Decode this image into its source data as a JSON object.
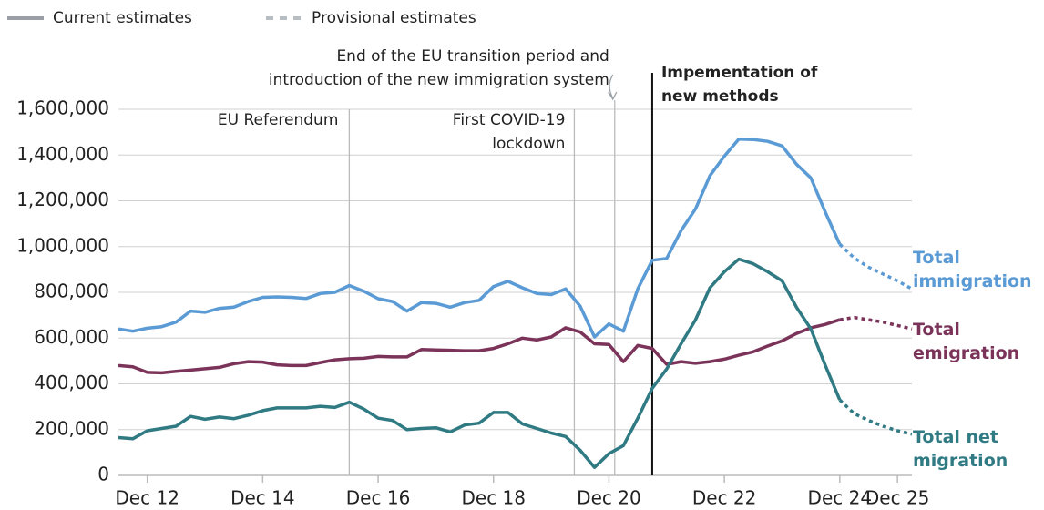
{
  "chart_data": {
    "type": "line",
    "legend": [
      {
        "label": "Current estimates",
        "color": "#9aa0a6",
        "dash": false
      },
      {
        "label": "Provisional estimates",
        "color": "#b8bdc2",
        "dash": true
      }
    ],
    "x": [
      2012.5,
      2012.75,
      2013,
      2013.25,
      2013.5,
      2013.75,
      2014,
      2014.25,
      2014.5,
      2014.75,
      2015,
      2015.25,
      2015.5,
      2015.75,
      2016,
      2016.25,
      2016.5,
      2016.75,
      2017,
      2017.25,
      2017.5,
      2017.75,
      2018,
      2018.25,
      2018.5,
      2018.75,
      2019,
      2019.25,
      2019.5,
      2019.75,
      2020,
      2020.25,
      2020.5,
      2020.75,
      2021,
      2021.25,
      2021.5,
      2021.75,
      2022,
      2022.25,
      2022.5,
      2022.75,
      2023,
      2023.25,
      2023.5,
      2023.75,
      2024,
      2024.25,
      2024.5,
      2024.75,
      2025
    ],
    "provisional_x": [
      2025,
      2025.25,
      2025.5,
      2025.75,
      2026,
      2026.25
    ],
    "series": [
      {
        "name": "Total immigration",
        "color": "#5b9bd5",
        "values": [
          640000,
          630000,
          643000,
          650000,
          670000,
          718000,
          713000,
          730000,
          735000,
          760000,
          778000,
          780000,
          778000,
          773000,
          795000,
          800000,
          830000,
          805000,
          772000,
          760000,
          718000,
          755000,
          752000,
          735000,
          755000,
          765000,
          825000,
          848000,
          820000,
          795000,
          790000,
          815000,
          740000,
          605000,
          662000,
          630000,
          815000,
          940000,
          948000,
          1070000,
          1165000,
          1310000,
          1395000,
          1470000,
          1468000,
          1460000,
          1440000,
          1360000,
          1300000,
          1150000,
          1010000
        ],
        "provisional": [
          1010000,
          950000,
          910000,
          880000,
          850000,
          815000
        ]
      },
      {
        "name": "Total emigration",
        "color": "#7b3359",
        "values": [
          480000,
          475000,
          450000,
          448000,
          455000,
          460000,
          466000,
          472000,
          488000,
          497000,
          495000,
          483000,
          480000,
          480000,
          493000,
          505000,
          510000,
          512000,
          520000,
          518000,
          518000,
          550000,
          548000,
          547000,
          545000,
          545000,
          555000,
          575000,
          600000,
          592000,
          605000,
          645000,
          627000,
          575000,
          572000,
          497000,
          568000,
          555000,
          485000,
          497000,
          490000,
          497000,
          508000,
          525000,
          540000,
          565000,
          588000,
          620000,
          645000,
          660000,
          680000
        ],
        "provisional": [
          680000,
          690000,
          680000,
          670000,
          655000,
          640000
        ]
      },
      {
        "name": "Total net migration",
        "color": "#2f7a83",
        "values": [
          165000,
          160000,
          195000,
          205000,
          215000,
          258000,
          245000,
          255000,
          248000,
          263000,
          283000,
          295000,
          295000,
          295000,
          302000,
          297000,
          320000,
          290000,
          250000,
          240000,
          200000,
          205000,
          208000,
          190000,
          220000,
          228000,
          275000,
          275000,
          225000,
          205000,
          185000,
          170000,
          110000,
          35000,
          95000,
          130000,
          250000,
          380000,
          465000,
          575000,
          680000,
          820000,
          890000,
          945000,
          925000,
          890000,
          850000,
          735000,
          640000,
          480000,
          330000
        ],
        "provisional": [
          330000,
          270000,
          240000,
          215000,
          195000,
          180000
        ]
      }
    ],
    "annotations": [
      {
        "x": 2016.5,
        "text": [
          "EU Referendum"
        ],
        "bold": false
      },
      {
        "x": 2020.4,
        "text": [
          "First COVID-19",
          "lockdown"
        ],
        "bold": false
      },
      {
        "x": 2021.1,
        "text": [
          "End of the EU transition period and",
          "introduction of the new immigration system"
        ],
        "bold": false
      },
      {
        "x": 2021.75,
        "text": [
          "Impementation of",
          "new methods"
        ],
        "bold": true
      }
    ],
    "xlim": [
      2012.5,
      2026.25
    ],
    "xticks": [
      {
        "value": 2013,
        "label": "Dec 12"
      },
      {
        "value": 2015,
        "label": "Dec 14"
      },
      {
        "value": 2017,
        "label": "Dec 16"
      },
      {
        "value": 2019,
        "label": "Dec 18"
      },
      {
        "value": 2021,
        "label": "Dec 20"
      },
      {
        "value": 2023,
        "label": "Dec 22"
      },
      {
        "value": 2025,
        "label": "Dec 24"
      },
      {
        "value": 2026,
        "label": "Dec 25"
      }
    ],
    "ylim": [
      0,
      1600000
    ],
    "yticks": [
      0,
      {
        "value": 200000,
        "label": "200,000"
      },
      {
        "value": 400000,
        "label": "400,000"
      },
      {
        "value": 600000,
        "label": "600,000"
      },
      {
        "value": 800000,
        "label": "800,000"
      },
      {
        "value": 1000000,
        "label": "1,000,000"
      },
      {
        "value": 1200000,
        "label": "1,200,000"
      },
      {
        "value": 1400000,
        "label": "1,400,000"
      },
      {
        "value": 1600000,
        "label": "1,600,000"
      }
    ],
    "grid": true
  }
}
